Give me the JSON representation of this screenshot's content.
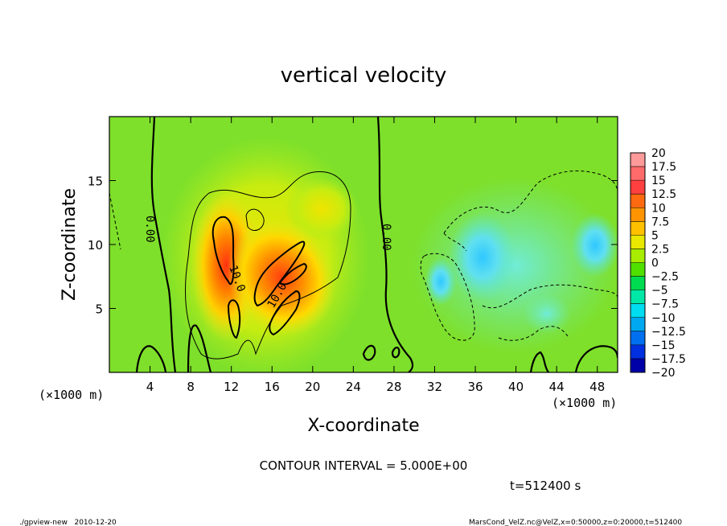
{
  "chart_data": {
    "type": "heatmap",
    "title": "vertical velocity",
    "xlabel": "X-coordinate",
    "ylabel": "Z-coordinate",
    "x_unit_label": "(×1000 m)",
    "z_unit_label": "(×1000 m)",
    "xlim": [
      0,
      50
    ],
    "ylim": [
      0,
      20
    ],
    "x_ticks": [
      4,
      8,
      12,
      16,
      20,
      24,
      28,
      32,
      36,
      40,
      44,
      48
    ],
    "y_ticks": [
      5,
      10,
      15
    ],
    "colorbar": {
      "levels": [
        "20",
        "17.5",
        "15",
        "12.5",
        "10",
        "7.5",
        "5",
        "2.5",
        "0",
        "−2.5",
        "−5",
        "−7.5",
        "−10",
        "−12.5",
        "−15",
        "−17.5",
        "−20"
      ],
      "colors": [
        "#ff9a9a",
        "#ff6a6a",
        "#ff4040",
        "#ff6a10",
        "#ff9400",
        "#ffc000",
        "#e8e800",
        "#a8ec00",
        "#50e000",
        "#00dc50",
        "#00e8a8",
        "#00dcf0",
        "#00a8f0",
        "#0070f0",
        "#0030e0",
        "#0000a8",
        "#6a20c8"
      ]
    },
    "contour_labels": [
      "0.00",
      "0.00",
      "10.0",
      "10.0"
    ],
    "contour_interval_text": "CONTOUR INTERVAL = 5.000E+00",
    "time_text": "t=512400 s"
  },
  "footer": {
    "left": "./gpview-new   2010-12-20",
    "right": "MarsCond_VelZ.nc@VelZ,x=0:50000,z=0:20000,t=512400"
  }
}
